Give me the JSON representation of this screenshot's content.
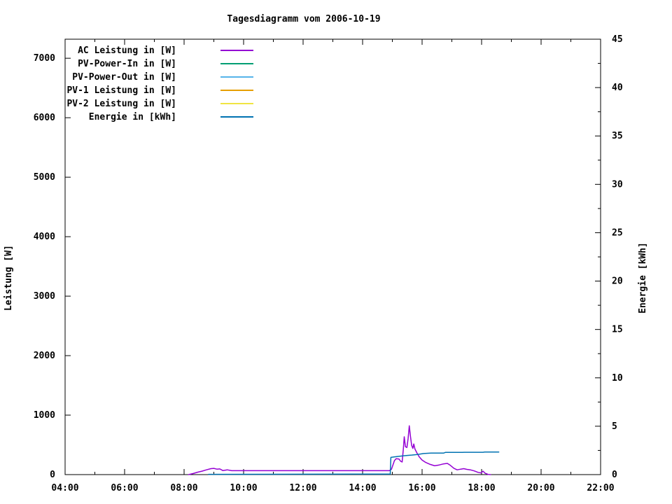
{
  "title": "Tagesdiagramm vom 2006-10-19",
  "chart_data": {
    "type": "line",
    "title": "Tagesdiagramm vom 2006-10-19",
    "grid": false,
    "legend_position": "top-left-inside",
    "x_axis": {
      "unit": "time",
      "range_hours": [
        4,
        22
      ],
      "major_tick_labels": [
        "04:00",
        "06:00",
        "08:00",
        "10:00",
        "12:00",
        "14:00",
        "16:00",
        "18:00",
        "20:00",
        "22:00"
      ],
      "major_tick_step_hours": 2,
      "minor_tick_step_hours": 1
    },
    "y_axis_left": {
      "label": "Leistung [W]",
      "ticks": [
        0,
        1000,
        2000,
        3000,
        4000,
        5000,
        6000,
        7000
      ],
      "range": [
        0,
        7320
      ]
    },
    "y_axis_right": {
      "label": "Energie [kWh]",
      "ticks": [
        0,
        5,
        10,
        15,
        20,
        25,
        30,
        35,
        40,
        45
      ],
      "minor_tick_step": 2.5,
      "range": [
        0,
        45
      ]
    },
    "series": [
      {
        "name": "AC Leistung in [W]",
        "color": "#9400d3",
        "axis": "left",
        "points": [
          [
            8.15,
            0
          ],
          [
            8.3,
            18
          ],
          [
            8.45,
            40
          ],
          [
            8.6,
            58
          ],
          [
            8.75,
            80
          ],
          [
            8.9,
            100
          ],
          [
            9.0,
            105
          ],
          [
            9.1,
            92
          ],
          [
            9.2,
            95
          ],
          [
            9.3,
            68
          ],
          [
            9.45,
            80
          ],
          [
            9.6,
            66
          ],
          [
            10.0,
            66
          ],
          [
            14.9,
            66
          ],
          [
            14.97,
            90
          ],
          [
            15.02,
            160
          ],
          [
            15.07,
            235
          ],
          [
            15.13,
            268
          ],
          [
            15.22,
            262
          ],
          [
            15.28,
            225
          ],
          [
            15.33,
            212
          ],
          [
            15.37,
            430
          ],
          [
            15.4,
            635
          ],
          [
            15.44,
            470
          ],
          [
            15.49,
            455
          ],
          [
            15.53,
            605
          ],
          [
            15.57,
            820
          ],
          [
            15.61,
            640
          ],
          [
            15.65,
            490
          ],
          [
            15.69,
            440
          ],
          [
            15.72,
            515
          ],
          [
            15.76,
            430
          ],
          [
            15.82,
            370
          ],
          [
            15.9,
            300
          ],
          [
            16.0,
            245
          ],
          [
            16.12,
            205
          ],
          [
            16.27,
            172
          ],
          [
            16.42,
            148
          ],
          [
            16.58,
            162
          ],
          [
            16.72,
            180
          ],
          [
            16.85,
            188
          ],
          [
            16.95,
            155
          ],
          [
            17.07,
            105
          ],
          [
            17.18,
            80
          ],
          [
            17.3,
            92
          ],
          [
            17.4,
            100
          ],
          [
            17.5,
            88
          ],
          [
            17.62,
            80
          ],
          [
            17.75,
            62
          ],
          [
            17.88,
            38
          ],
          [
            17.98,
            28
          ],
          [
            18.05,
            58
          ],
          [
            18.12,
            22
          ],
          [
            18.22,
            4
          ],
          [
            18.3,
            0
          ]
        ]
      },
      {
        "name": "PV-Power-In in [W]",
        "color": "#009e73",
        "axis": "left",
        "points": []
      },
      {
        "name": "PV-Power-Out in [W]",
        "color": "#56b4e9",
        "axis": "left",
        "points": []
      },
      {
        "name": "PV-1 Leistung in [W]",
        "color": "#e69f00",
        "axis": "left",
        "points": []
      },
      {
        "name": "PV-2 Leistung in [W]",
        "color": "#f0e442",
        "axis": "left",
        "points": []
      },
      {
        "name": "Energie in [kWh]",
        "color": "#0072b2",
        "axis": "right",
        "points": [
          [
            8.82,
            0.03
          ],
          [
            14.93,
            0.06
          ],
          [
            14.95,
            1.78
          ],
          [
            15.08,
            1.84
          ],
          [
            15.2,
            1.88
          ],
          [
            15.35,
            1.93
          ],
          [
            15.5,
            1.98
          ],
          [
            15.65,
            2.02
          ],
          [
            15.85,
            2.08
          ],
          [
            16.05,
            2.18
          ],
          [
            16.3,
            2.22
          ],
          [
            16.72,
            2.22
          ],
          [
            16.78,
            2.29
          ],
          [
            17.35,
            2.29
          ],
          [
            17.42,
            2.31
          ],
          [
            18.05,
            2.31
          ],
          [
            18.1,
            2.33
          ],
          [
            18.58,
            2.33
          ]
        ]
      }
    ]
  }
}
